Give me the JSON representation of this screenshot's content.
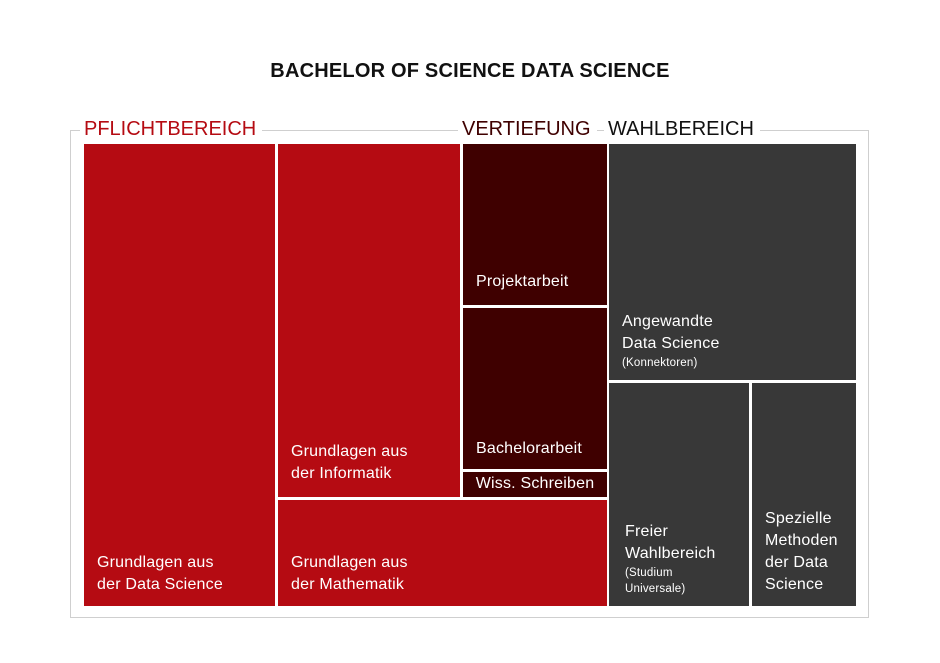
{
  "title": "BACHELOR OF SCIENCE DATA SCIENCE",
  "colors": {
    "pflicht": "#b50b12",
    "vertiefung": "#3f0000",
    "wahl": "#383838",
    "frame": "#cfcfcf"
  },
  "sections": {
    "pflichtbereich": "PFLICHTBEREICH",
    "vertiefung": "VERTIEFUNG",
    "wahlbereich": "WAHLBEREICH"
  },
  "blocks": {
    "grundlagen_data_science": {
      "line1": "Grundlagen aus",
      "line2": "der Data Science"
    },
    "grundlagen_informatik": {
      "line1": "Grundlagen aus",
      "line2": "der Informatik"
    },
    "grundlagen_mathematik": {
      "line1": "Grundlagen aus",
      "line2": "der Mathematik"
    },
    "projektarbeit": {
      "label": "Projektarbeit"
    },
    "bachelorarbeit": {
      "label": "Bachelorarbeit"
    },
    "wiss_schreiben": {
      "label": "Wiss. Schreiben"
    },
    "angewandte_data_science": {
      "line1": "Angewandte",
      "line2": "Data Science",
      "sub": "(Konnektoren)"
    },
    "freier_wahlbereich": {
      "line1": "Freier",
      "line2": "Wahlbereich",
      "sub1": "(Studium",
      "sub2": "Universale)"
    },
    "spezielle_methoden": {
      "line1": "Spezielle",
      "line2": "Methoden",
      "line3": "der Data",
      "line4": "Science"
    }
  }
}
